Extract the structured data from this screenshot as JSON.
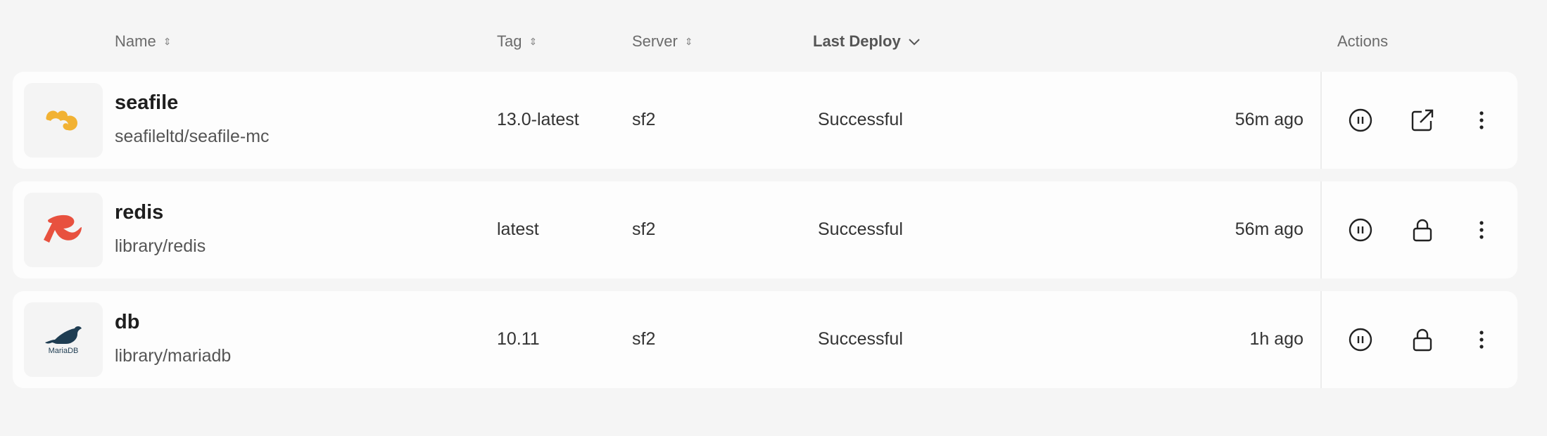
{
  "columns": {
    "name": "Name",
    "tag": "Tag",
    "server": "Server",
    "last_deploy": "Last Deploy",
    "actions": "Actions"
  },
  "sort": {
    "active_column": "Last Deploy",
    "direction": "descending"
  },
  "rows": [
    {
      "name": "seafile",
      "image": "seafileltd/seafile-mc",
      "tag": "13.0-latest",
      "server": "sf2",
      "status": "Successful",
      "time": "56m ago",
      "logo": "seafile-logo",
      "second_action": "external-link-icon"
    },
    {
      "name": "redis",
      "image": "library/redis",
      "tag": "latest",
      "server": "sf2",
      "status": "Successful",
      "time": "56m ago",
      "logo": "redis-logo",
      "second_action": "lock-icon"
    },
    {
      "name": "db",
      "image": "library/mariadb",
      "tag": "10.11",
      "server": "sf2",
      "status": "Successful",
      "time": "1h ago",
      "logo": "mariadb-logo",
      "logo_text": "MariaDB",
      "second_action": "lock-icon"
    }
  ],
  "colors": {
    "seafile": "#f2b233",
    "redis": "#e8513f",
    "mariadb": "#1f3d52"
  }
}
